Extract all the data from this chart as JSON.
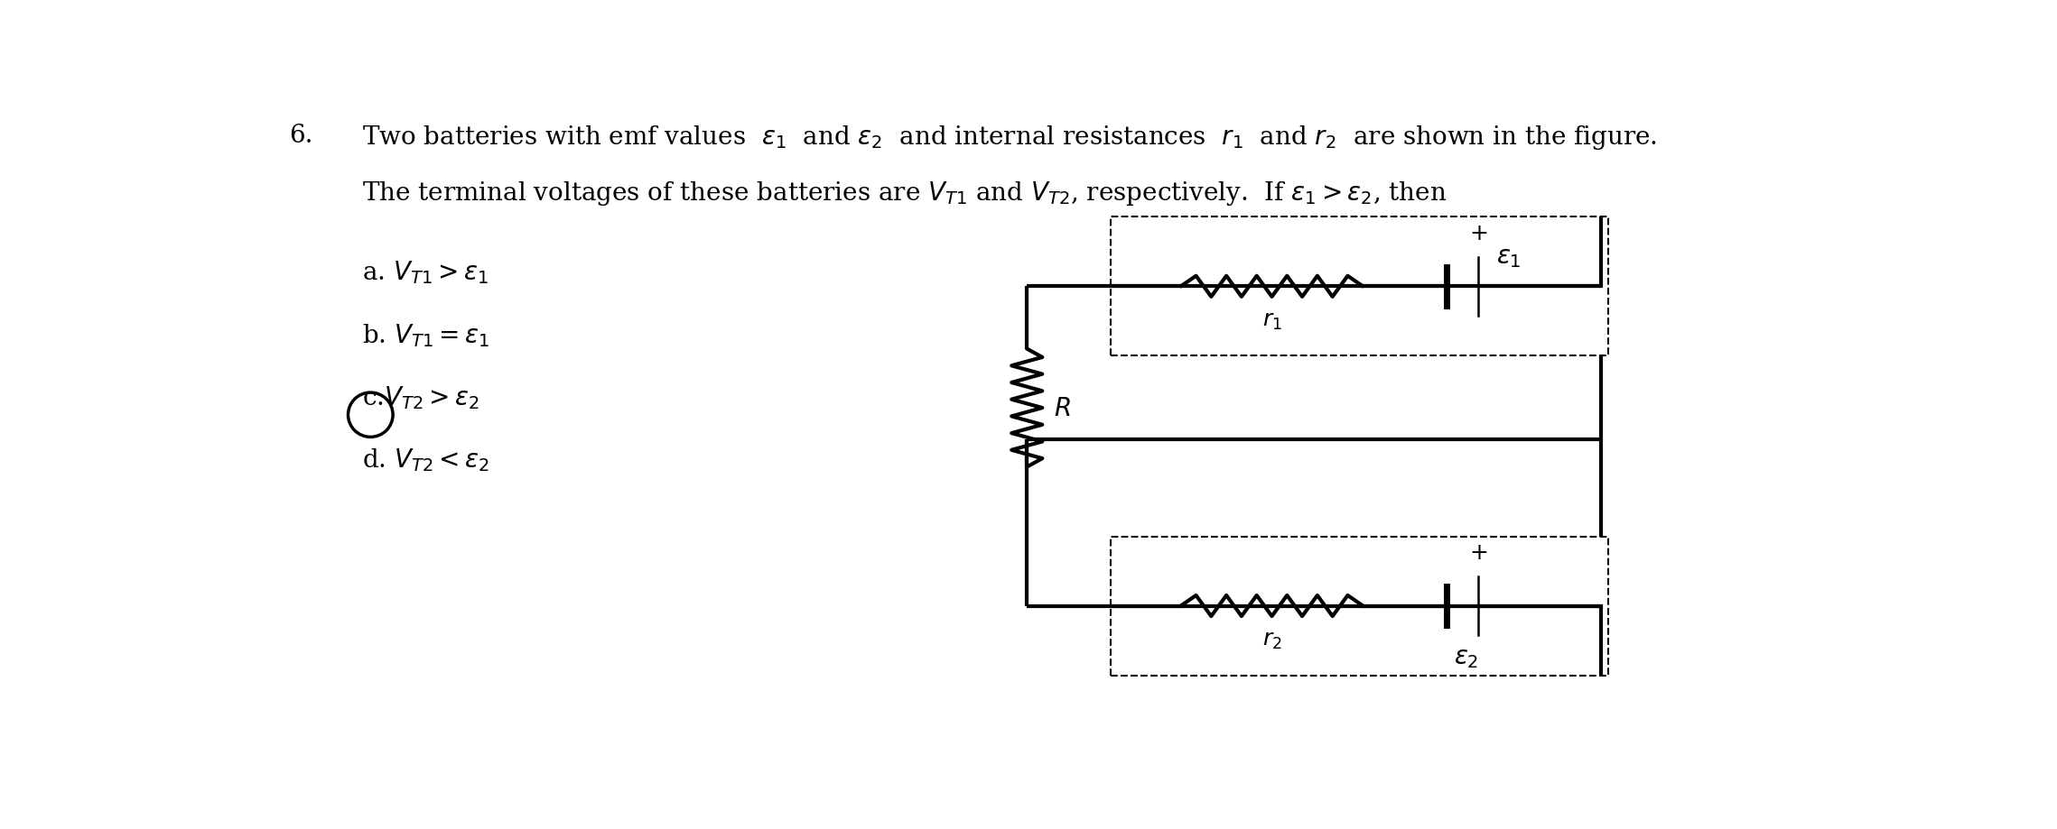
{
  "background_color": "#ffffff",
  "fig_width": 22.78,
  "fig_height": 9.2,
  "dpi": 100,
  "question_num": "6.",
  "title_line1": "Two batteries with emf values  $\\varepsilon_1$  and $\\varepsilon_2$  and internal resistances  $r_1$  and $r_2$  are shown in the figure.",
  "title_line2": "The terminal voltages of these batteries are $V_{T1}$ and $V_{T2}$, respectively.  If $\\varepsilon_1 > \\varepsilon_2$, then",
  "option_a": "a. $V_{T1} > \\varepsilon_1$",
  "option_b": "b. $V_{T1} = \\varepsilon_1$",
  "option_c": "c.$V_{T2} > \\varepsilon_2$",
  "option_d": "d. $V_{T2} < \\varepsilon_2$",
  "text_color": "#000000",
  "circuit_color": "#000000",
  "dashed_color": "#000000",
  "fs_main": 20,
  "fs_label": 18,
  "lw_main": 3.0,
  "lw_dashed": 1.5,
  "lw_batt_thick": 5.0,
  "lw_batt_thin": 1.8
}
